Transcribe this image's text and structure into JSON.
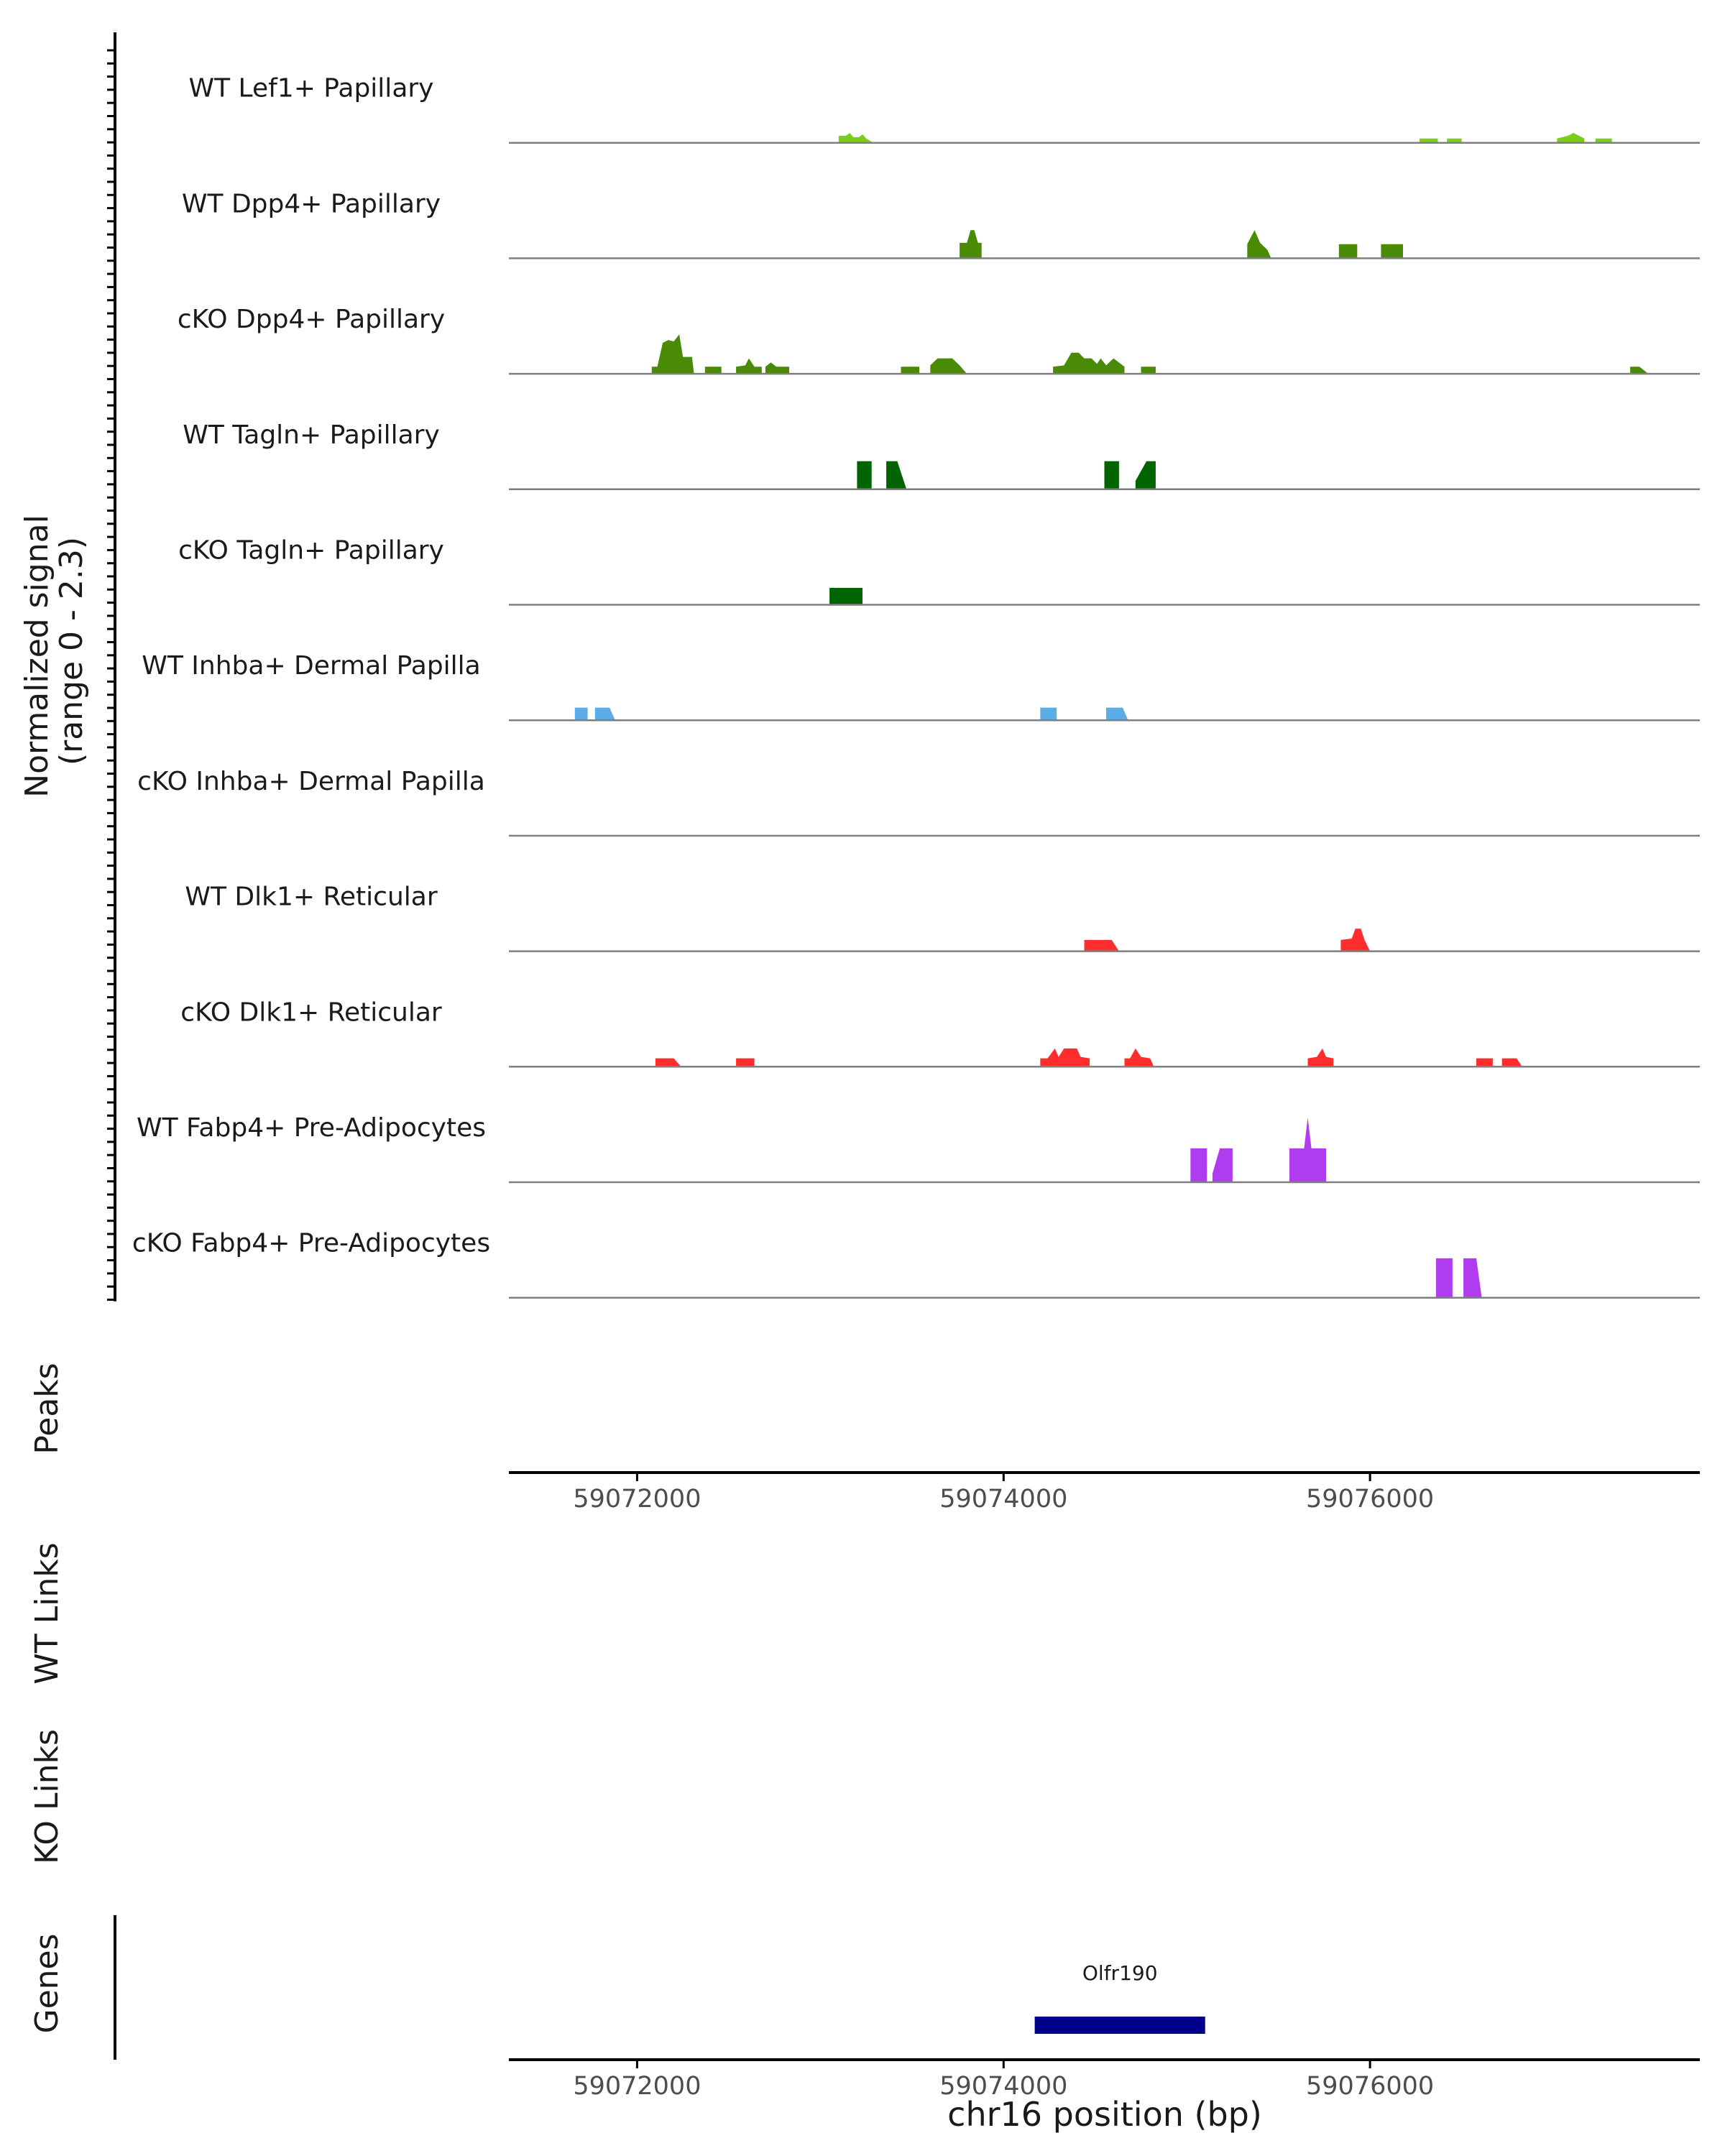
{
  "chart_data": {
    "type": "area",
    "title": "",
    "y_axis_title_line1": "Normalized signal",
    "y_axis_title_line2": "(range 0 - 2.3)",
    "signal_range": [
      0,
      2.3
    ],
    "region": "chr16",
    "x_range": [
      59071300,
      59077800
    ],
    "x_ticks": [
      59072000,
      59074000,
      59076000
    ],
    "x_tick_labels": [
      "59072000",
      "59074000",
      "59076000"
    ],
    "xlabel": "chr16 position (bp)",
    "tracks": [
      {
        "name": "WT Lef1+ Papillary",
        "color": "#7ccd17",
        "segments": [
          [
            [
              59073100,
              0.25
            ],
            [
              59073140,
              0.25
            ],
            [
              59073160,
              0.35
            ],
            [
              59073180,
              0.2
            ],
            [
              59073210,
              0.2
            ],
            [
              59073230,
              0.3
            ],
            [
              59073250,
              0.15
            ],
            [
              59073290,
              0.0
            ]
          ],
          [
            [
              59076270,
              0.15
            ],
            [
              59076370,
              0.15
            ]
          ],
          [
            [
              59076420,
              0.15
            ],
            [
              59076500,
              0.15
            ]
          ],
          [
            [
              59077020,
              0.15
            ],
            [
              59077080,
              0.25
            ],
            [
              59077110,
              0.35
            ],
            [
              59077140,
              0.25
            ],
            [
              59077170,
              0.15
            ]
          ],
          [
            [
              59077230,
              0.15
            ],
            [
              59077320,
              0.15
            ]
          ]
        ]
      },
      {
        "name": "WT Dpp4+ Papillary",
        "color": "#4a8b05",
        "segments": [
          [
            [
              59073760,
              0.55
            ],
            [
              59073800,
              0.55
            ],
            [
              59073820,
              1.0
            ],
            [
              59073840,
              1.0
            ],
            [
              59073860,
              0.55
            ],
            [
              59073880,
              0.55
            ]
          ],
          [
            [
              59075330,
              0.5
            ],
            [
              59075370,
              1.0
            ],
            [
              59075400,
              0.55
            ],
            [
              59075440,
              0.3
            ],
            [
              59075460,
              0.0
            ]
          ],
          [
            [
              59075830,
              0.5
            ],
            [
              59075930,
              0.5
            ]
          ],
          [
            [
              59076060,
              0.5
            ],
            [
              59076180,
              0.5
            ]
          ]
        ]
      },
      {
        "name": "cKO Dpp4+ Papillary",
        "color": "#4a8b05",
        "segments": [
          [
            [
              59072080,
              0.25
            ],
            [
              59072110,
              0.25
            ],
            [
              59072140,
              1.1
            ],
            [
              59072170,
              1.2
            ],
            [
              59072200,
              1.15
            ],
            [
              59072230,
              1.4
            ],
            [
              59072250,
              0.6
            ],
            [
              59072300,
              0.6
            ],
            [
              59072310,
              0.0
            ]
          ],
          [
            [
              59072370,
              0.25
            ],
            [
              59072460,
              0.25
            ]
          ],
          [
            [
              59072540,
              0.25
            ],
            [
              59072590,
              0.3
            ],
            [
              59072610,
              0.55
            ],
            [
              59072640,
              0.25
            ],
            [
              59072680,
              0.25
            ]
          ],
          [
            [
              59072700,
              0.25
            ],
            [
              59072730,
              0.4
            ],
            [
              59072760,
              0.25
            ],
            [
              59072830,
              0.25
            ]
          ],
          [
            [
              59073440,
              0.25
            ],
            [
              59073540,
              0.25
            ]
          ],
          [
            [
              59073600,
              0.3
            ],
            [
              59073640,
              0.55
            ],
            [
              59073720,
              0.55
            ],
            [
              59073760,
              0.3
            ],
            [
              59073800,
              0.0
            ]
          ],
          [
            [
              59074270,
              0.25
            ],
            [
              59074330,
              0.3
            ],
            [
              59074370,
              0.75
            ],
            [
              59074410,
              0.75
            ],
            [
              59074440,
              0.55
            ],
            [
              59074480,
              0.55
            ],
            [
              59074510,
              0.35
            ],
            [
              59074530,
              0.55
            ],
            [
              59074560,
              0.3
            ],
            [
              59074600,
              0.55
            ],
            [
              59074640,
              0.35
            ],
            [
              59074660,
              0.25
            ]
          ],
          [
            [
              59074750,
              0.25
            ],
            [
              59074830,
              0.25
            ]
          ],
          [
            [
              59077420,
              0.25
            ],
            [
              59077470,
              0.25
            ],
            [
              59077520,
              0.0
            ]
          ]
        ]
      },
      {
        "name": "WT Tagln+ Papillary",
        "color": "#006400",
        "segments": [
          [
            [
              59073200,
              1.0
            ],
            [
              59073280,
              1.0
            ]
          ],
          [
            [
              59073360,
              1.0
            ],
            [
              59073420,
              1.0
            ],
            [
              59073470,
              0.0
            ]
          ],
          [
            [
              59074550,
              1.0
            ],
            [
              59074630,
              1.0
            ]
          ],
          [
            [
              59074720,
              0.3
            ],
            [
              59074780,
              1.0
            ],
            [
              59074830,
              1.0
            ]
          ]
        ]
      },
      {
        "name": "cKO Tagln+ Papillary",
        "color": "#006400",
        "segments": [
          [
            [
              59073050,
              0.6
            ],
            [
              59073230,
              0.6
            ]
          ]
        ]
      },
      {
        "name": "WT Inhba+ Dermal Papilla",
        "color": "#5aade6",
        "segments": [
          [
            [
              59071660,
              0.45
            ],
            [
              59071730,
              0.45
            ]
          ],
          [
            [
              59071770,
              0.45
            ],
            [
              59071850,
              0.45
            ],
            [
              59071880,
              0.0
            ]
          ],
          [
            [
              59074200,
              0.45
            ],
            [
              59074290,
              0.45
            ]
          ],
          [
            [
              59074560,
              0.45
            ],
            [
              59074650,
              0.45
            ],
            [
              59074680,
              0.0
            ]
          ]
        ]
      },
      {
        "name": "cKO Inhba+ Dermal Papilla",
        "color": "#5aade6",
        "segments": []
      },
      {
        "name": "WT Dlk1+ Reticular",
        "color": "#ff2d2d",
        "segments": [
          [
            [
              59074440,
              0.4
            ],
            [
              59074590,
              0.4
            ],
            [
              59074630,
              0.0
            ]
          ],
          [
            [
              59075840,
              0.4
            ],
            [
              59075900,
              0.45
            ],
            [
              59075920,
              0.8
            ],
            [
              59075950,
              0.8
            ],
            [
              59075970,
              0.4
            ],
            [
              59076000,
              0.0
            ]
          ]
        ]
      },
      {
        "name": "cKO Dlk1+ Reticular",
        "color": "#ff2d2d",
        "segments": [
          [
            [
              59072100,
              0.3
            ],
            [
              59072150,
              0.3
            ],
            [
              59072200,
              0.3
            ],
            [
              59072240,
              0.0
            ]
          ],
          [
            [
              59072540,
              0.3
            ],
            [
              59072640,
              0.3
            ]
          ],
          [
            [
              59074200,
              0.3
            ],
            [
              59074240,
              0.3
            ],
            [
              59074280,
              0.65
            ],
            [
              59074300,
              0.35
            ],
            [
              59074330,
              0.65
            ],
            [
              59074400,
              0.65
            ],
            [
              59074420,
              0.35
            ],
            [
              59074470,
              0.3
            ]
          ],
          [
            [
              59074660,
              0.3
            ],
            [
              59074690,
              0.3
            ],
            [
              59074720,
              0.65
            ],
            [
              59074750,
              0.35
            ],
            [
              59074800,
              0.3
            ],
            [
              59074820,
              0.0
            ]
          ],
          [
            [
              59075660,
              0.3
            ],
            [
              59075710,
              0.35
            ],
            [
              59075740,
              0.65
            ],
            [
              59075760,
              0.35
            ],
            [
              59075800,
              0.3
            ]
          ],
          [
            [
              59076580,
              0.3
            ],
            [
              59076670,
              0.3
            ]
          ],
          [
            [
              59076720,
              0.3
            ],
            [
              59076800,
              0.3
            ],
            [
              59076830,
              0.0
            ]
          ]
        ]
      },
      {
        "name": "WT Fabp4+ Pre-Adipocytes",
        "color": "#b03cf0",
        "segments": [
          [
            [
              59075020,
              1.2
            ],
            [
              59075110,
              1.2
            ]
          ],
          [
            [
              59075140,
              0.3
            ],
            [
              59075180,
              1.2
            ],
            [
              59075250,
              1.2
            ]
          ],
          [
            [
              59075560,
              1.2
            ],
            [
              59075640,
              1.2
            ],
            [
              59075660,
              2.3
            ],
            [
              59075680,
              1.2
            ],
            [
              59075760,
              1.2
            ]
          ]
        ]
      },
      {
        "name": "cKO Fabp4+ Pre-Adipocytes",
        "color": "#b03cf0",
        "segments": [
          [
            [
              59076360,
              1.4
            ],
            [
              59076450,
              1.4
            ]
          ],
          [
            [
              59076510,
              1.4
            ],
            [
              59076580,
              1.4
            ],
            [
              59076610,
              0.0
            ]
          ]
        ]
      }
    ],
    "annotation_tracks": [
      "Peaks",
      "WT Links",
      "KO Links"
    ],
    "genes": {
      "title": "Genes",
      "items": [
        {
          "name": "Olfr190",
          "start": 59074170,
          "end": 59075100,
          "color": "#00008b"
        }
      ]
    }
  }
}
